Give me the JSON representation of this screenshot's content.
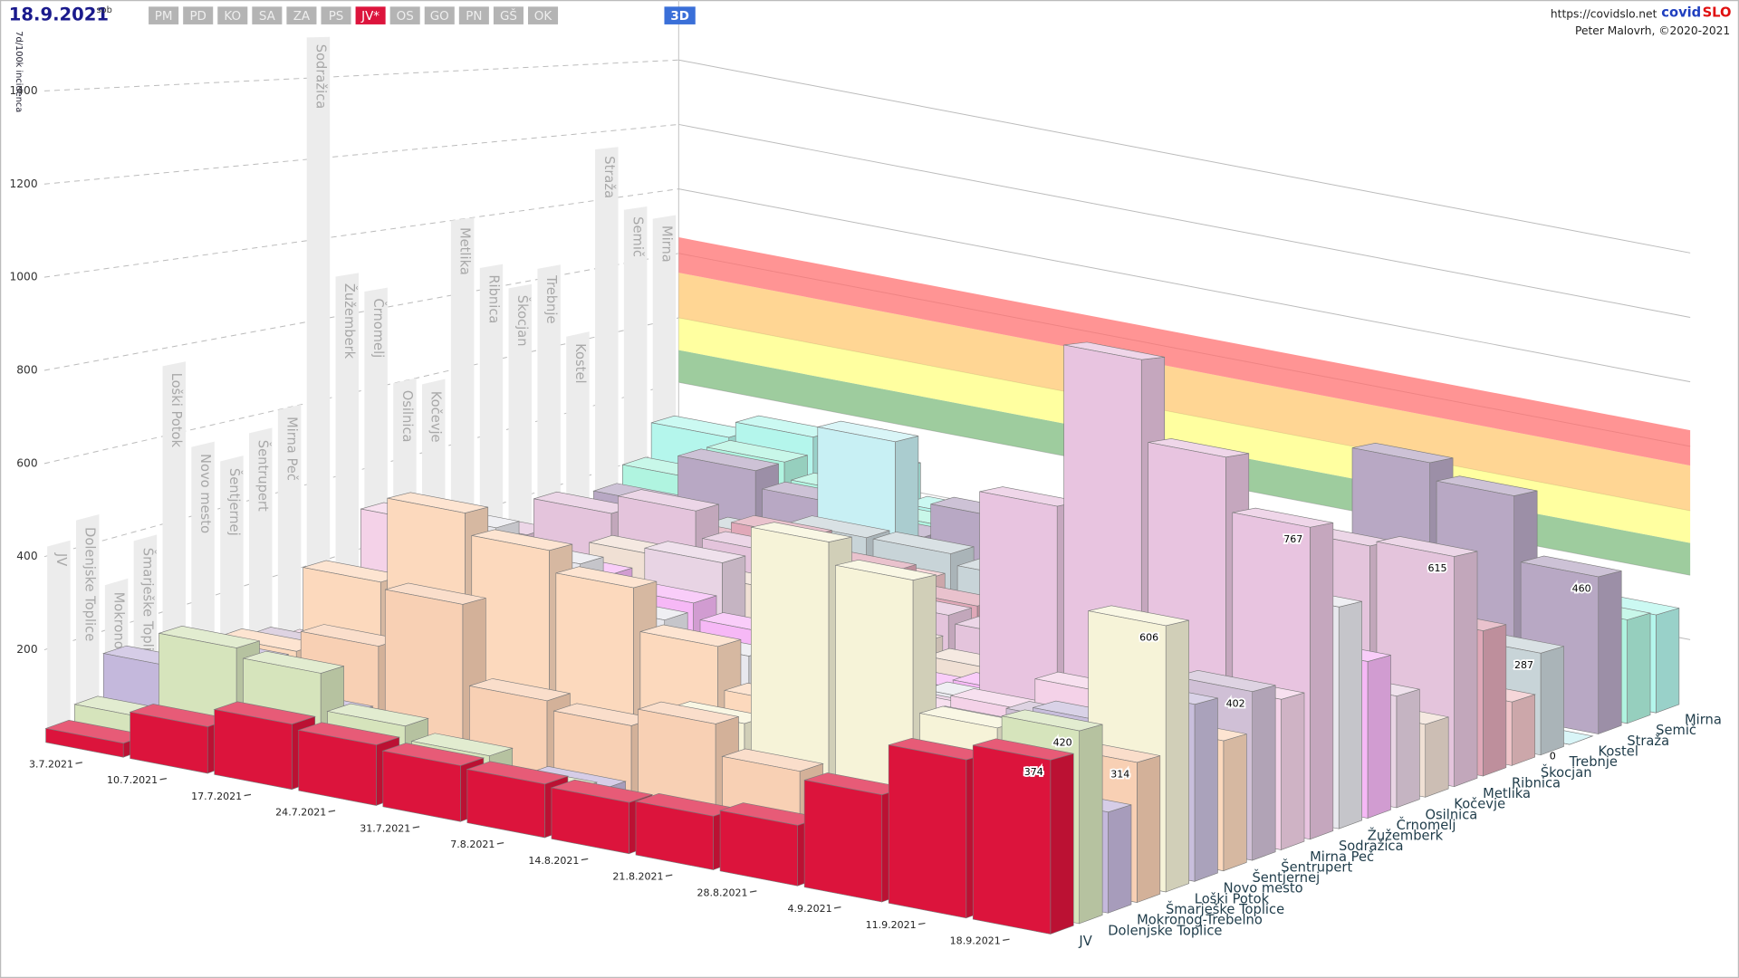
{
  "header": {
    "date": "18.9.2021",
    "weekday": "sob",
    "buttons": [
      {
        "label": "PM"
      },
      {
        "label": "PD"
      },
      {
        "label": "KO"
      },
      {
        "label": "SA"
      },
      {
        "label": "ZA"
      },
      {
        "label": "PS"
      },
      {
        "label": "JV*",
        "active": true
      },
      {
        "label": "OS"
      },
      {
        "label": "GO"
      },
      {
        "label": "PN"
      },
      {
        "label": "GŠ"
      },
      {
        "label": "OK"
      }
    ],
    "mode": "3D",
    "url": "https://covidslo.net",
    "brand": [
      "covid",
      "SLO"
    ],
    "credit": "Peter Malovrh, ©2020-2021"
  },
  "chart_data": {
    "type": "bar3d",
    "y_title": "7d/100k incidenca",
    "categories": [
      "3.7.2021",
      "10.7.2021",
      "17.7.2021",
      "24.7.2021",
      "31.7.2021",
      "7.8.2021",
      "14.8.2021",
      "21.8.2021",
      "28.8.2021",
      "4.9.2021",
      "11.9.2021",
      "18.9.2021"
    ],
    "ylim": [
      0,
      1600
    ],
    "yticks": [
      200,
      400,
      600,
      800,
      1000,
      1200,
      1400
    ],
    "grid": true,
    "bands": [
      {
        "from": 400,
        "to": 500,
        "color": "#7dbb7d"
      },
      {
        "from": 500,
        "to": 600,
        "color": "#ffff80"
      },
      {
        "from": 600,
        "to": 740,
        "color": "#ffc870"
      },
      {
        "from": 740,
        "to": 850,
        "color": "#ff7070"
      }
    ],
    "series": [
      {
        "name": "JV",
        "color": "#dc143c",
        "max": 420,
        "values": [
          30,
          100,
          140,
          130,
          120,
          115,
          110,
          115,
          130,
          230,
          340,
          374
        ]
      },
      {
        "name": "Dolenjske Toplice",
        "color": "#d6e4bc",
        "max": 460,
        "values": [
          60,
          250,
          230,
          150,
          120,
          80,
          60,
          40,
          60,
          80,
          150,
          420
        ]
      },
      {
        "name": "Mokronog-Trebelno",
        "color": "#c4b8dc",
        "max": 300,
        "values": [
          150,
          200,
          120,
          60,
          40,
          60,
          30,
          40,
          50,
          60,
          100,
          223
        ]
      },
      {
        "name": "Šmarješke Toplice",
        "color": "#f8d0b4",
        "max": 380,
        "values": [
          40,
          120,
          250,
          380,
          200,
          180,
          220,
          150,
          80,
          40,
          100,
          314
        ]
      },
      {
        "name": "Loški Potok",
        "color": "#f6f3d8",
        "max": 760,
        "values": [
          0,
          0,
          0,
          0,
          0,
          0,
          200,
          650,
          600,
          300,
          150,
          606
        ]
      },
      {
        "name": "Novo mesto",
        "color": "#c8bedc",
        "max": 560,
        "values": [
          60,
          80,
          90,
          70,
          60,
          80,
          90,
          100,
          150,
          220,
          330,
          409
        ]
      },
      {
        "name": "Šentjernej",
        "color": "#fcd9bd",
        "max": 510,
        "values": [
          100,
          300,
          500,
          450,
          400,
          300,
          200,
          150,
          120,
          100,
          200,
          305
        ]
      },
      {
        "name": "Šentrupert",
        "color": "#d0c0d6",
        "max": 560,
        "values": [
          80,
          200,
          150,
          100,
          60,
          40,
          80,
          150,
          200,
          250,
          300,
          402
        ]
      },
      {
        "name": "Mirna Peč",
        "color": "#f4d2e8",
        "max": 600,
        "values": [
          50,
          400,
          350,
          250,
          150,
          120,
          100,
          180,
          220,
          300,
          280,
          364
        ]
      },
      {
        "name": "Sodražica",
        "color": "#e8c4e0",
        "max": 1500,
        "values": [
          0,
          0,
          0,
          0,
          0,
          0,
          0,
          150,
          700,
          1100,
          900,
          767
        ]
      },
      {
        "name": "Žužemberk",
        "color": "#e8e8ee",
        "max": 900,
        "values": [
          150,
          350,
          300,
          200,
          150,
          120,
          100,
          150,
          200,
          300,
          500,
          554
        ]
      },
      {
        "name": "Črnomelj",
        "color": "#f6b8f6",
        "max": 850,
        "values": [
          100,
          200,
          250,
          220,
          180,
          150,
          130,
          150,
          200,
          300,
          380,
          398
        ]
      },
      {
        "name": "Osilnica",
        "color": "#e8d4e4",
        "max": 600,
        "values": [
          0,
          0,
          0,
          300,
          0,
          0,
          0,
          0,
          0,
          200,
          400,
          288
        ]
      },
      {
        "name": "Kočevje",
        "color": "#f0e0d4",
        "max": 580,
        "values": [
          80,
          150,
          250,
          220,
          180,
          150,
          120,
          100,
          130,
          180,
          200,
          191
        ]
      },
      {
        "name": "Metlika",
        "color": "#e4c4dc",
        "max": 1000,
        "values": [
          200,
          300,
          350,
          280,
          220,
          200,
          180,
          250,
          350,
          500,
          600,
          615
        ]
      },
      {
        "name": "Ribnica",
        "color": "#e0a8b8",
        "max": 860,
        "values": [
          100,
          200,
          250,
          300,
          250,
          200,
          180,
          200,
          250,
          300,
          380,
          395
        ]
      },
      {
        "name": "Škocjan",
        "color": "#f0c4c8",
        "max": 790,
        "values": [
          0,
          200,
          150,
          100,
          200,
          150,
          0,
          200,
          150,
          100,
          150,
          176
        ]
      },
      {
        "name": "Trebnje",
        "color": "#c8d4d8",
        "max": 830,
        "values": [
          100,
          150,
          200,
          250,
          250,
          220,
          200,
          230,
          250,
          280,
          300,
          287
        ]
      },
      {
        "name": "Kostel",
        "color": "#c8f0f4",
        "max": 620,
        "values": [
          0,
          0,
          0,
          500,
          0,
          0,
          0,
          0,
          0,
          0,
          0,
          0
        ]
      },
      {
        "name": "Straža",
        "color": "#b8a8c4",
        "max": 1150,
        "values": [
          150,
          300,
          250,
          200,
          300,
          250,
          200,
          250,
          400,
          700,
          650,
          460
        ]
      },
      {
        "name": "Semič",
        "color": "#b0f4e0",
        "max": 960,
        "values": [
          200,
          300,
          250,
          200,
          250,
          200,
          150,
          200,
          300,
          350,
          330,
          309
        ]
      },
      {
        "name": "Mirna",
        "color": "#b4f6ec",
        "max": 920,
        "values": [
          300,
          350,
          300,
          200,
          150,
          150,
          200,
          250,
          300,
          280,
          300,
          298
        ]
      }
    ]
  }
}
